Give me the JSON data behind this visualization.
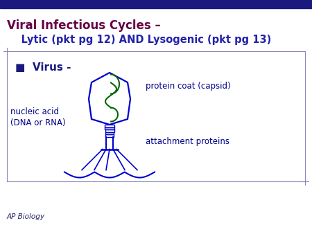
{
  "bg_color": "#ffffff",
  "header_bar_color": "#1a1a7e",
  "title_line1": "Viral Infectious Cycles –",
  "title_line2": "    Lytic (pkt pg 12) AND Lysogenic (pkt pg 13)",
  "title_color": "#660044",
  "subtitle_color": "#2222aa",
  "bullet_text": "■  Virus -",
  "bullet_color": "#1a1a7e",
  "label_nucleic": "nucleic acid\n(DNA or RNA)",
  "label_capsid": "protein coat (capsid)",
  "label_attach": "attachment proteins",
  "label_color": "#000088",
  "footer_text": "AP Biology",
  "footer_color": "#222266",
  "virus_body_color": "#0000cc",
  "virus_dna_color": "#006600",
  "border_color": "#8888bb"
}
